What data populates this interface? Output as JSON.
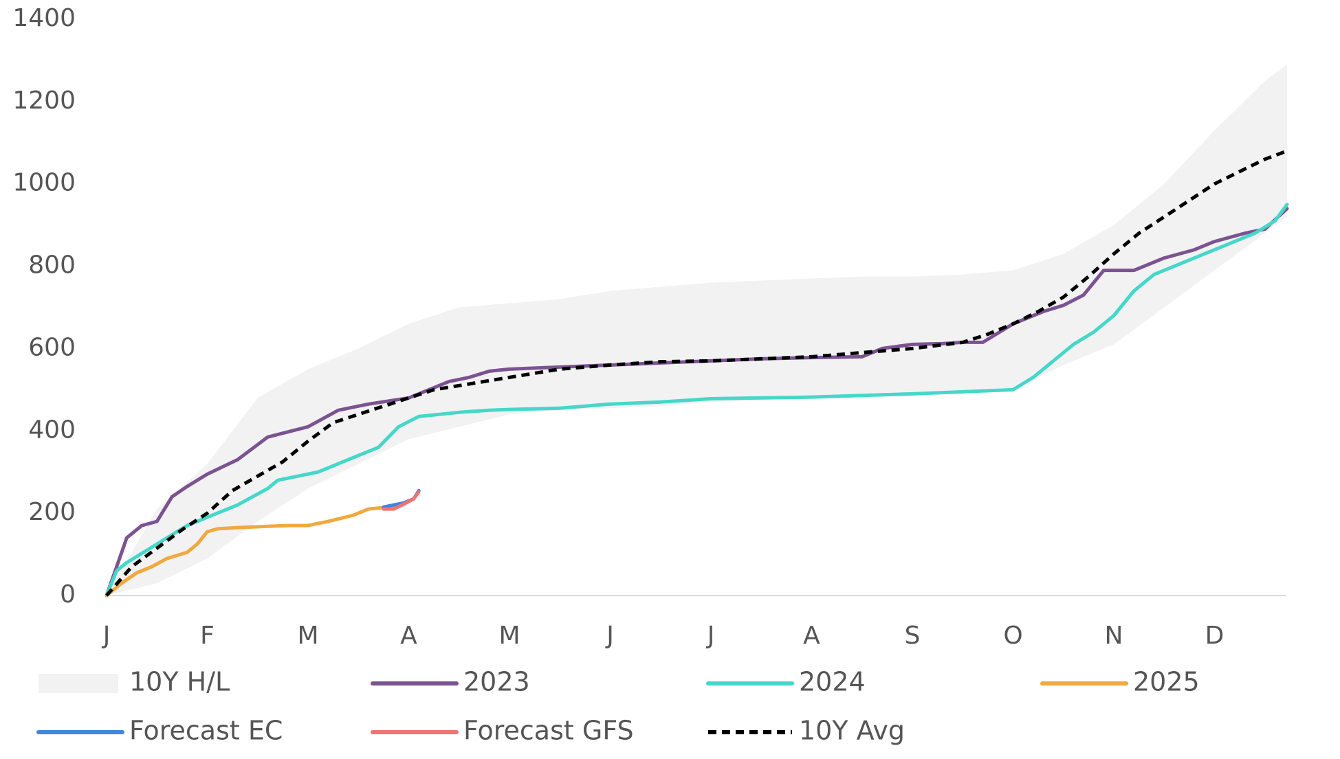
{
  "chart_data": {
    "type": "line",
    "title": "",
    "xlabel": "",
    "ylabel": "",
    "ylim": [
      0,
      1400
    ],
    "yticks": [
      0,
      200,
      400,
      600,
      800,
      1000,
      1200,
      1400
    ],
    "grid": false,
    "legend_position": "bottom",
    "x_month_labels": [
      "J",
      "F",
      "M",
      "A",
      "M",
      "J",
      "J",
      "A",
      "S",
      "O",
      "N",
      "D"
    ],
    "band": {
      "name": "10Y H/L",
      "color": "#f2f2f2",
      "x": [
        0,
        0.5,
        1,
        1.5,
        2,
        2.5,
        3,
        3.5,
        4,
        4.5,
        5,
        5.5,
        6,
        6.5,
        7,
        7.5,
        8,
        8.5,
        9,
        9.5,
        10,
        10.5,
        11,
        11.5,
        11.72
      ],
      "high": [
        0,
        210,
        320,
        480,
        550,
        600,
        660,
        700,
        710,
        720,
        740,
        750,
        760,
        765,
        770,
        775,
        775,
        780,
        790,
        830,
        900,
        1000,
        1130,
        1250,
        1290
      ],
      "low": [
        0,
        30,
        90,
        180,
        260,
        320,
        380,
        410,
        440,
        450,
        455,
        460,
        470,
        475,
        480,
        485,
        490,
        495,
        500,
        560,
        610,
        700,
        790,
        880,
        920
      ]
    },
    "series": [
      {
        "name": "2023",
        "color": "#7b5391",
        "width": 5,
        "dash": "",
        "x": [
          0,
          0.1,
          0.2,
          0.35,
          0.5,
          0.65,
          0.8,
          1,
          1.3,
          1.6,
          2,
          2.15,
          2.3,
          2.6,
          3,
          3.2,
          3.4,
          3.6,
          3.8,
          4,
          4.5,
          5,
          5.5,
          6,
          6.5,
          7,
          7.5,
          7.7,
          8,
          8.3,
          8.5,
          8.7,
          9,
          9.3,
          9.5,
          9.7,
          9.9,
          10.2,
          10.5,
          10.8,
          11,
          11.3,
          11.5,
          11.72
        ],
        "y": [
          0,
          70,
          140,
          170,
          180,
          240,
          265,
          295,
          330,
          385,
          410,
          430,
          450,
          465,
          480,
          500,
          520,
          530,
          545,
          550,
          555,
          560,
          565,
          570,
          575,
          578,
          580,
          600,
          610,
          612,
          615,
          615,
          660,
          690,
          705,
          730,
          790,
          790,
          820,
          840,
          860,
          880,
          890,
          940
        ]
      },
      {
        "name": "2024",
        "color": "#45d7ca",
        "width": 5,
        "dash": "",
        "x": [
          0,
          0.1,
          0.2,
          0.4,
          0.6,
          0.8,
          1,
          1.3,
          1.6,
          1.7,
          1.9,
          2.1,
          2.3,
          2.5,
          2.7,
          2.9,
          3.1,
          3.3,
          3.5,
          3.8,
          4,
          4.5,
          5,
          5.5,
          6,
          6.5,
          7,
          7.5,
          8,
          8.5,
          9,
          9.2,
          9.4,
          9.6,
          9.8,
          10,
          10.2,
          10.4,
          10.6,
          10.8,
          11,
          11.2,
          11.4,
          11.6,
          11.72
        ],
        "y": [
          0,
          60,
          80,
          110,
          140,
          170,
          190,
          220,
          260,
          280,
          290,
          300,
          320,
          340,
          360,
          410,
          435,
          440,
          445,
          450,
          452,
          455,
          465,
          470,
          478,
          480,
          482,
          486,
          490,
          495,
          500,
          530,
          570,
          610,
          640,
          680,
          740,
          780,
          800,
          820,
          840,
          860,
          880,
          910,
          950
        ]
      },
      {
        "name": "2025",
        "color": "#f0a93f",
        "width": 5,
        "dash": "",
        "x": [
          0,
          0.15,
          0.3,
          0.45,
          0.6,
          0.8,
          0.9,
          1,
          1.1,
          1.3,
          1.6,
          1.8,
          2,
          2.2,
          2.45,
          2.6,
          2.8,
          2.9
        ],
        "y": [
          0,
          30,
          55,
          70,
          90,
          105,
          125,
          155,
          162,
          165,
          168,
          170,
          170,
          180,
          195,
          210,
          215,
          218
        ]
      },
      {
        "name": "Forecast EC",
        "color": "#3f86e0",
        "width": 5,
        "dash": "",
        "x": [
          2.75,
          2.85,
          2.95,
          3.05,
          3.1
        ],
        "y": [
          215,
          220,
          225,
          235,
          255
        ]
      },
      {
        "name": "Forecast GFS",
        "color": "#f07373",
        "width": 5,
        "dash": "",
        "x": [
          2.75,
          2.85,
          2.95,
          3.05,
          3.1
        ],
        "y": [
          210,
          210,
          222,
          235,
          252
        ]
      },
      {
        "name": "10Y Avg",
        "color": "#000000",
        "width": 5,
        "dash": "12 8",
        "x": [
          0,
          0.25,
          0.5,
          0.75,
          1,
          1.25,
          1.5,
          1.75,
          2,
          2.25,
          2.5,
          2.75,
          3,
          3.25,
          3.5,
          3.75,
          4,
          4.5,
          5,
          5.5,
          6,
          6.5,
          7,
          7.5,
          8,
          8.5,
          8.75,
          9,
          9.25,
          9.5,
          9.75,
          10,
          10.25,
          10.5,
          10.75,
          11,
          11.25,
          11.5,
          11.72
        ],
        "y": [
          0,
          70,
          115,
          160,
          200,
          255,
          290,
          325,
          375,
          420,
          440,
          460,
          480,
          500,
          510,
          520,
          530,
          550,
          560,
          568,
          570,
          575,
          580,
          590,
          600,
          615,
          635,
          660,
          690,
          725,
          775,
          830,
          880,
          920,
          960,
          1000,
          1030,
          1060,
          1080
        ]
      }
    ]
  }
}
